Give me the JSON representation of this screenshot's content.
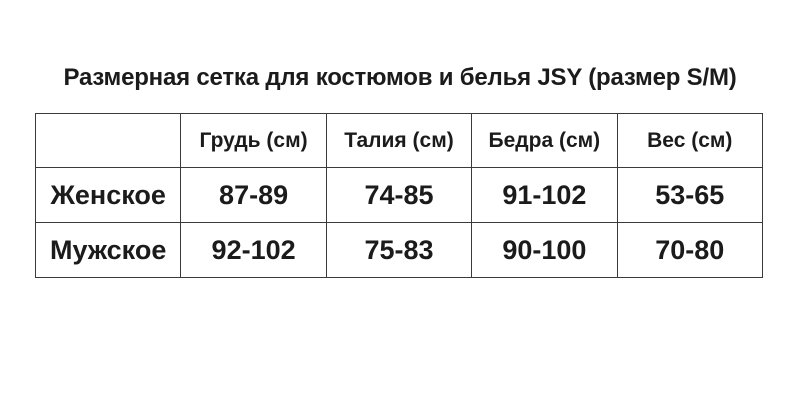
{
  "title": "Размерная сетка для костюмов и белья JSY (размер S/M)",
  "chart_data": {
    "type": "table",
    "title": "Размерная сетка для костюмов и белья JSY (размер S/M)",
    "columns": [
      "",
      "Грудь (см)",
      "Талия (см)",
      "Бедра (см)",
      "Вес (см)"
    ],
    "rows": [
      [
        "Женское",
        "87-89",
        "74-85",
        "91-102",
        "53-65"
      ],
      [
        "Мужское",
        "92-102",
        "75-83",
        "90-100",
        "70-80"
      ]
    ]
  },
  "colors": {
    "background": "#ffffff",
    "text": "#1b1b1b",
    "border": "#3a3a3a"
  }
}
